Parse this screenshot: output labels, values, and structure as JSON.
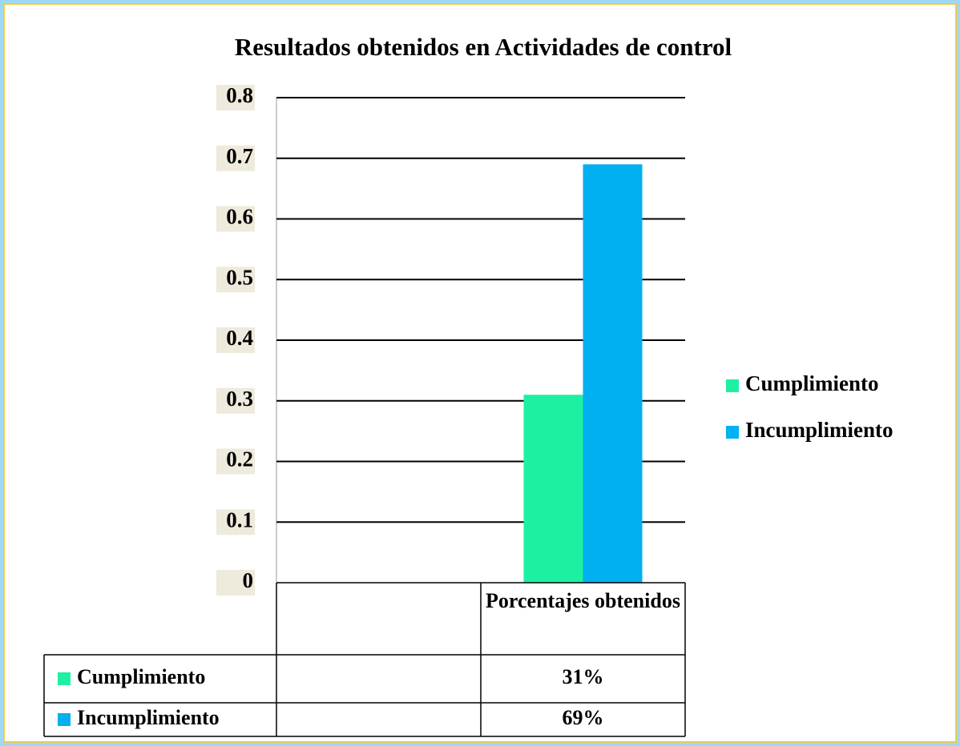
{
  "chart_data": {
    "type": "bar",
    "title": "Resultados obtenidos en Actividades de control",
    "categories": [
      null,
      "Porcentajes obtenidos"
    ],
    "series": [
      {
        "name": "Cumplimiento",
        "color": "#1ef0a2",
        "values": [
          null,
          0.31
        ],
        "value_labels": [
          null,
          "31%"
        ]
      },
      {
        "name": "Incumplimiento",
        "color": "#00b0f0",
        "values": [
          null,
          0.69
        ],
        "value_labels": [
          null,
          "69%"
        ]
      }
    ],
    "ylim": [
      0,
      0.8
    ],
    "yticks": [
      0,
      0.1,
      0.2,
      0.3,
      0.4,
      0.5,
      0.6,
      0.7,
      0.8
    ],
    "grid": true,
    "legend": "right",
    "data_table": true
  }
}
